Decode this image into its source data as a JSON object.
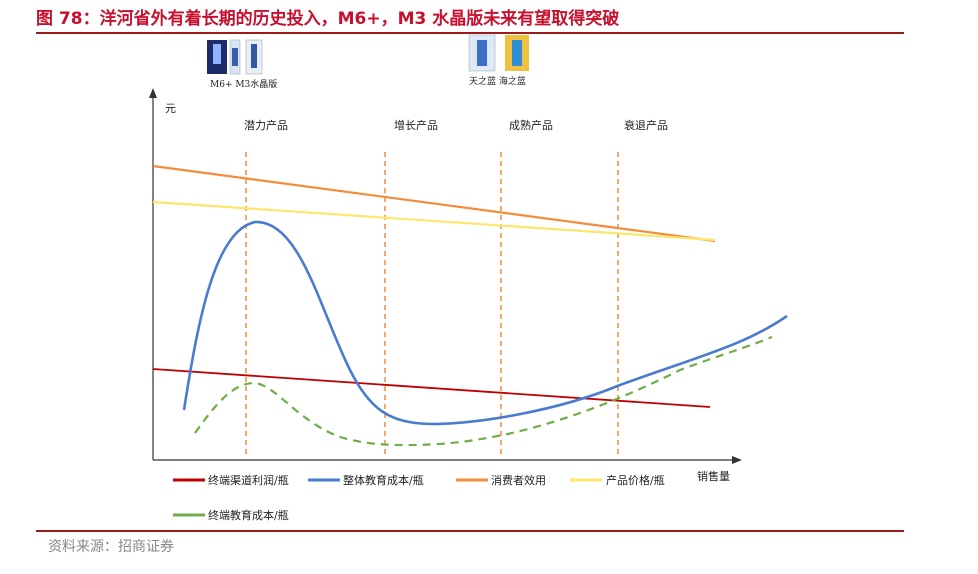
{
  "title": "图 78：洋河省外有着长期的历史投入，M6+，M3 水晶版未来有望取得突破",
  "source": "资料来源：招商证券",
  "products_left_label": "M6+  M3水晶版",
  "products_right_label": "天之蓝  海之蓝",
  "axis": {
    "y_label": "元",
    "x_label": "销售量"
  },
  "stages": [
    "潜力产品",
    "增长产品",
    "成熟产品",
    "衰退产品"
  ],
  "legend": [
    {
      "label": "终端渠道利润/瓶",
      "color": "#c00000"
    },
    {
      "label": "整体教育成本/瓶",
      "color": "#4472c4"
    },
    {
      "label": "消费者效用",
      "color": "#f28c3a"
    },
    {
      "label": "产品价格/瓶",
      "color": "#fde66c"
    },
    {
      "label": "终端教育成本/瓶",
      "color": "#70ad47"
    }
  ],
  "colors": {
    "title": "#c8102e",
    "stage_divider": "#f28c3a",
    "axis": "#333333"
  }
}
